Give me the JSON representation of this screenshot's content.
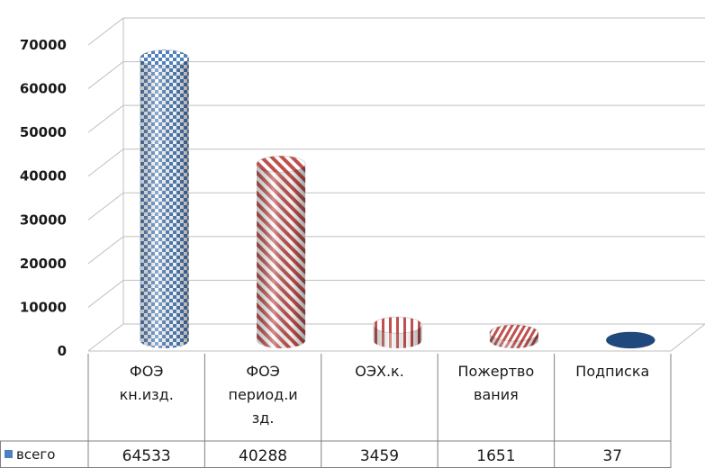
{
  "chart_data": {
    "type": "bar",
    "style": "3d-cylinder with data table",
    "categories": [
      [
        "ФОЭ",
        "кн.изд."
      ],
      [
        "ФОЭ",
        "период.и",
        "зд."
      ],
      [
        "ОЭХ.к."
      ],
      [
        "Пожертво",
        "вания"
      ],
      [
        "Подписка"
      ]
    ],
    "series": [
      {
        "name": "всего",
        "values": [
          64533,
          40288,
          3459,
          1651,
          37
        ]
      }
    ],
    "yticks": [
      "0",
      "10000",
      "20000",
      "30000",
      "40000",
      "50000",
      "60000",
      "70000"
    ],
    "ylim": [
      0,
      70000
    ],
    "grid": true,
    "legend": "data-table-left",
    "colors": {
      "legend_key": "#4f81bd",
      "bar_patterns": [
        "blue-check",
        "red-diagonal",
        "red-vertical",
        "red-horizontal",
        "navy-solid"
      ]
    }
  }
}
